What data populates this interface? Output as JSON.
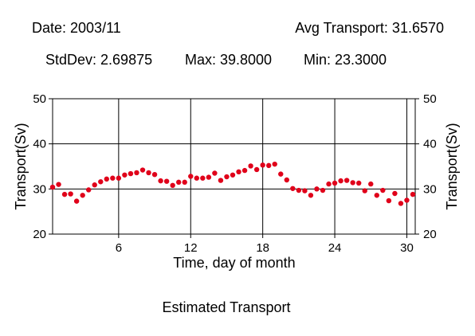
{
  "header": {
    "date": "Date: 2003/11",
    "avg": "Avg Transport: 31.6570",
    "stddev": "StdDev: 2.69875",
    "max": "Max: 39.8000",
    "min": "Min: 23.3000"
  },
  "caption": "Estimated Transport",
  "chart_data": {
    "type": "scatter",
    "title": "",
    "xlabel": "Time, day of month",
    "ylabel": "Transport(Sv)",
    "y2label": "Transport(Sv)",
    "xlim": [
      0.5,
      30.7
    ],
    "ylim": [
      20,
      50
    ],
    "xticks": [
      6,
      12,
      18,
      24,
      30
    ],
    "xtick_labels": [
      "6",
      "12",
      "18",
      "24",
      "30"
    ],
    "yticks": [
      20,
      30,
      40,
      50
    ],
    "ytick_labels": [
      "20",
      "30",
      "40",
      "50"
    ],
    "grid": true,
    "legend": "none",
    "marker_color": "#e0001a",
    "series": [
      {
        "x": [
          0.5,
          1.0,
          1.5,
          2.0,
          2.5,
          3.0,
          3.5,
          4.0,
          4.5,
          5.0,
          5.5,
          6.0,
          6.5,
          7.0,
          7.5,
          8.0,
          8.5,
          9.0,
          9.5,
          10.0,
          10.5,
          11.0,
          11.5,
          12.0,
          12.5,
          13.0,
          13.5,
          14.0,
          14.5,
          15.0,
          15.5,
          16.0,
          16.5,
          17.0,
          17.5,
          18.0,
          18.5,
          19.0,
          19.5,
          20.0,
          20.5,
          21.0,
          21.5,
          22.0,
          22.5,
          23.0,
          23.5,
          24.0,
          24.5,
          25.0,
          25.5,
          26.0,
          26.5,
          27.0,
          27.5,
          28.0,
          28.5,
          29.0,
          29.5,
          30.0,
          30.5
        ],
        "y": [
          30.4,
          31.0,
          28.8,
          28.9,
          27.3,
          28.6,
          29.8,
          30.9,
          31.6,
          32.2,
          32.4,
          32.4,
          33.1,
          33.4,
          33.6,
          34.2,
          33.6,
          33.2,
          31.8,
          31.7,
          30.8,
          31.5,
          31.5,
          32.8,
          32.4,
          32.4,
          32.6,
          33.5,
          31.9,
          32.7,
          33.1,
          33.8,
          34.1,
          35.1,
          34.3,
          35.3,
          35.2,
          35.5,
          33.3,
          32.0,
          30.1,
          29.7,
          29.6,
          28.6,
          30.0,
          29.7,
          31.1,
          31.3,
          31.8,
          31.9,
          31.4,
          31.3,
          29.6,
          31.1,
          28.6,
          29.7,
          27.4,
          29.0,
          26.8,
          27.5,
          28.8
        ]
      }
    ]
  }
}
